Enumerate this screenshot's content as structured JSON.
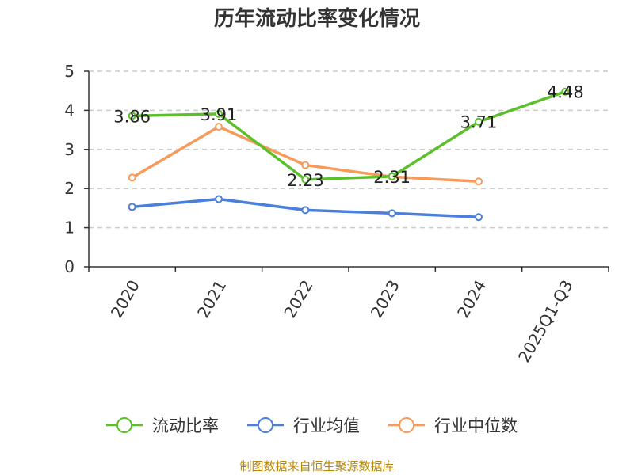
{
  "chart_data": {
    "type": "line",
    "title": "历年流动比率变化情况",
    "categories": [
      "2020",
      "2021",
      "2022",
      "2023",
      "2024",
      "2025Q1-Q3"
    ],
    "ylim": [
      0,
      5
    ],
    "yticks": [
      "0",
      "1",
      "2",
      "3",
      "4",
      "5"
    ],
    "grid": true,
    "legend_position": "bottom",
    "series": [
      {
        "name": "流动比率",
        "color": "#5cc02a",
        "values": [
          3.86,
          3.91,
          2.23,
          2.31,
          3.71,
          4.48
        ],
        "labels": [
          "3.86",
          "3.91",
          "2.23",
          "2.31",
          "3.71",
          "4.48"
        ]
      },
      {
        "name": "行业均值",
        "color": "#4a7fdb",
        "values": [
          1.53,
          1.73,
          1.45,
          1.37,
          1.27,
          null
        ]
      },
      {
        "name": "行业中位数",
        "color": "#f79a5a",
        "values": [
          2.28,
          3.58,
          2.6,
          2.3,
          2.18,
          null
        ]
      }
    ],
    "source": "制图数据来自恒生聚源数据库"
  }
}
